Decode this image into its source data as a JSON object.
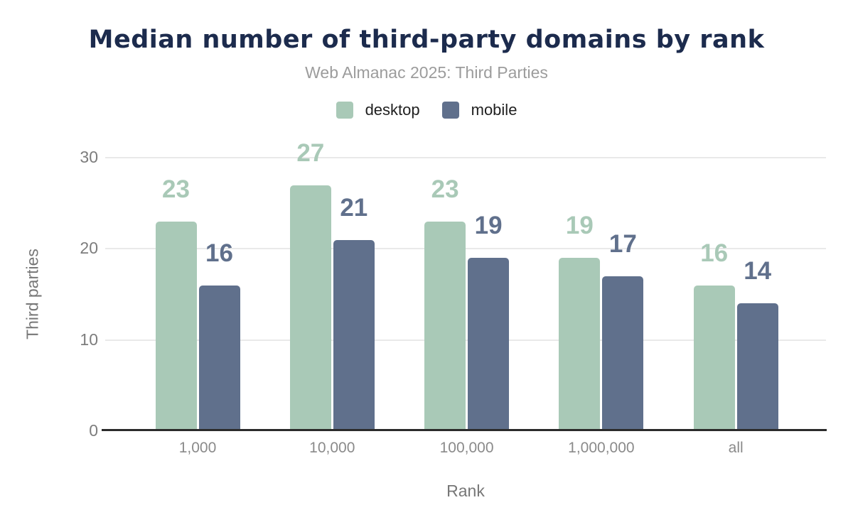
{
  "chart_data": {
    "type": "bar",
    "title": "Median number of third-party domains by rank",
    "subtitle": "Web Almanac 2025: Third Parties",
    "categories": [
      "1,000",
      "10,000",
      "100,000",
      "1,000,000",
      "all"
    ],
    "series": [
      {
        "name": "desktop",
        "color": "#a9c9b7",
        "values": [
          23,
          27,
          23,
          19,
          16
        ]
      },
      {
        "name": "mobile",
        "color": "#60708c",
        "values": [
          16,
          21,
          19,
          17,
          14
        ]
      }
    ],
    "xlabel": "Rank",
    "ylabel": "Third parties",
    "ylim": [
      0,
      30
    ],
    "yticks": [
      0,
      10,
      20,
      30
    ],
    "grid": true,
    "legend_position": "top",
    "value_labels": true
  },
  "colors": {
    "title": "#1c2b4d",
    "subtitle": "#9c9c9c",
    "gridline": "#e9e9e9",
    "axis_line": "#2b2b2b",
    "tick_text": "#7d7d7d",
    "axis_title_text": "#777777"
  }
}
